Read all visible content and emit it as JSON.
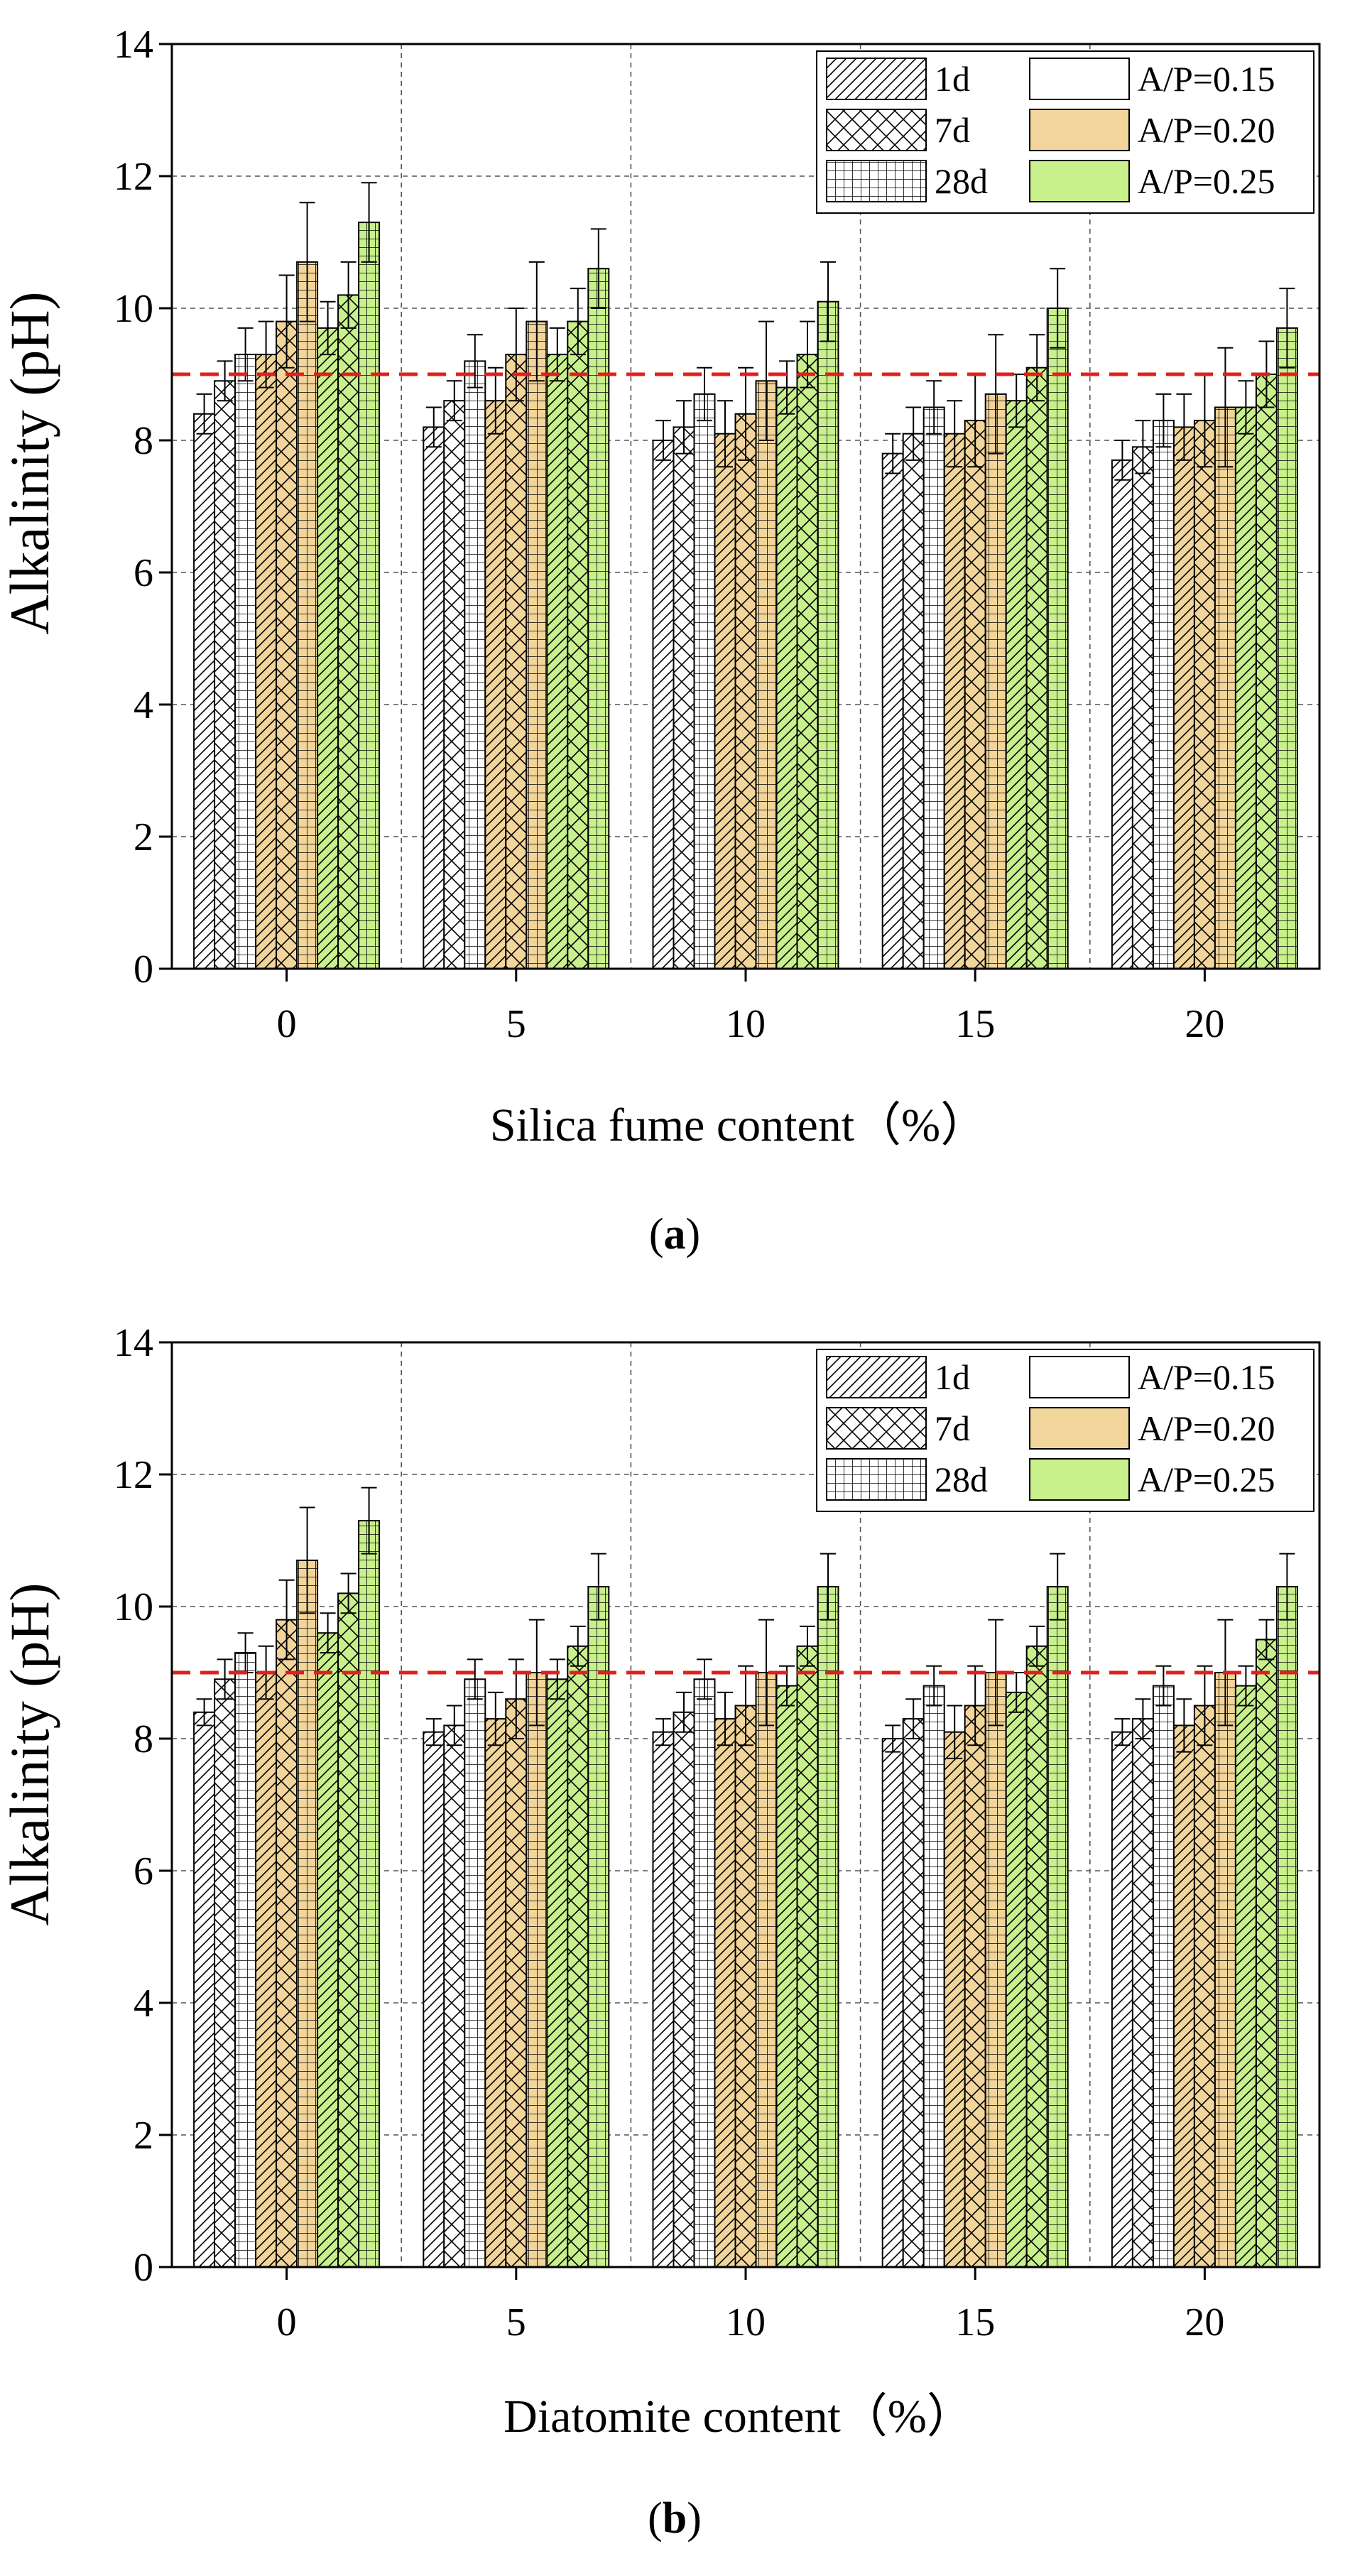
{
  "colors": {
    "ap_015": "#ffffff",
    "ap_020": "#f2d59a",
    "ap_025": "#c8f08c",
    "threshold": "#e0201c",
    "grid": "#555555"
  },
  "chart_data": [
    {
      "type": "bar",
      "panel": "a",
      "caption_open": "(",
      "caption_letter": "a",
      "caption_close": ")",
      "xlabel": "Silica fume content（%）",
      "ylabel": "Alkalinity (pH)",
      "ylim": [
        0,
        14
      ],
      "yticks": [
        "0",
        "2",
        "4",
        "6",
        "8",
        "10",
        "12",
        "14"
      ],
      "categories": [
        "0",
        "5",
        "10",
        "15",
        "20"
      ],
      "threshold": 9,
      "grid": true,
      "legend_position": "top-right",
      "legend": {
        "ages": [
          "1d",
          "7d",
          "28d"
        ],
        "ratios": [
          "A/P=0.15",
          "A/P=0.20",
          "A/P=0.25"
        ]
      },
      "series": [
        {
          "name": "A/P=0.15, 1d",
          "values": [
            8.4,
            8.2,
            8.0,
            7.8,
            7.7
          ],
          "errors": [
            0.3,
            0.3,
            0.3,
            0.3,
            0.3
          ]
        },
        {
          "name": "A/P=0.15, 7d",
          "values": [
            8.9,
            8.6,
            8.2,
            8.1,
            7.9
          ],
          "errors": [
            0.3,
            0.3,
            0.4,
            0.4,
            0.4
          ]
        },
        {
          "name": "A/P=0.15, 28d",
          "values": [
            9.3,
            9.2,
            8.7,
            8.5,
            8.3
          ],
          "errors": [
            0.4,
            0.4,
            0.4,
            0.4,
            0.4
          ]
        },
        {
          "name": "A/P=0.20, 1d",
          "values": [
            9.3,
            8.6,
            8.1,
            8.1,
            8.2
          ],
          "errors": [
            0.5,
            0.5,
            0.5,
            0.5,
            0.5
          ]
        },
        {
          "name": "A/P=0.20, 7d",
          "values": [
            9.8,
            9.3,
            8.4,
            8.3,
            8.3
          ],
          "errors": [
            0.7,
            0.7,
            0.7,
            0.7,
            0.7
          ]
        },
        {
          "name": "A/P=0.20, 28d",
          "values": [
            10.7,
            9.8,
            8.9,
            8.7,
            8.5
          ],
          "errors": [
            0.9,
            0.9,
            0.9,
            0.9,
            0.9
          ]
        },
        {
          "name": "A/P=0.25, 1d",
          "values": [
            9.7,
            9.3,
            8.8,
            8.6,
            8.5
          ],
          "errors": [
            0.4,
            0.4,
            0.4,
            0.4,
            0.4
          ]
        },
        {
          "name": "A/P=0.25, 7d",
          "values": [
            10.2,
            9.8,
            9.3,
            9.1,
            9.0
          ],
          "errors": [
            0.5,
            0.5,
            0.5,
            0.5,
            0.5
          ]
        },
        {
          "name": "A/P=0.25, 28d",
          "values": [
            11.3,
            10.6,
            10.1,
            10.0,
            9.7
          ],
          "errors": [
            0.6,
            0.6,
            0.6,
            0.6,
            0.6
          ]
        }
      ]
    },
    {
      "type": "bar",
      "panel": "b",
      "caption_open": "(",
      "caption_letter": "b",
      "caption_close": ")",
      "xlabel": "Diatomite content（%）",
      "ylabel": "Alkalinity (pH)",
      "ylim": [
        0,
        14
      ],
      "yticks": [
        "0",
        "2",
        "4",
        "6",
        "8",
        "10",
        "12",
        "14"
      ],
      "categories": [
        "0",
        "5",
        "10",
        "15",
        "20"
      ],
      "threshold": 9,
      "grid": true,
      "legend_position": "top-right",
      "legend": {
        "ages": [
          "1d",
          "7d",
          "28d"
        ],
        "ratios": [
          "A/P=0.15",
          "A/P=0.20",
          "A/P=0.25"
        ]
      },
      "series": [
        {
          "name": "A/P=0.15, 1d",
          "values": [
            8.4,
            8.1,
            8.1,
            8.0,
            8.1
          ],
          "errors": [
            0.2,
            0.2,
            0.2,
            0.2,
            0.2
          ]
        },
        {
          "name": "A/P=0.15, 7d",
          "values": [
            8.9,
            8.2,
            8.4,
            8.3,
            8.3
          ],
          "errors": [
            0.3,
            0.3,
            0.3,
            0.3,
            0.3
          ]
        },
        {
          "name": "A/P=0.15, 28d",
          "values": [
            9.3,
            8.9,
            8.9,
            8.8,
            8.8
          ],
          "errors": [
            0.3,
            0.3,
            0.3,
            0.3,
            0.3
          ]
        },
        {
          "name": "A/P=0.20, 1d",
          "values": [
            9.0,
            8.3,
            8.3,
            8.1,
            8.2
          ],
          "errors": [
            0.4,
            0.4,
            0.4,
            0.4,
            0.4
          ]
        },
        {
          "name": "A/P=0.20, 7d",
          "values": [
            9.8,
            8.6,
            8.5,
            8.5,
            8.5
          ],
          "errors": [
            0.6,
            0.6,
            0.6,
            0.6,
            0.6
          ]
        },
        {
          "name": "A/P=0.20, 28d",
          "values": [
            10.7,
            9.0,
            9.0,
            9.0,
            9.0
          ],
          "errors": [
            0.8,
            0.8,
            0.8,
            0.8,
            0.8
          ]
        },
        {
          "name": "A/P=0.25, 1d",
          "values": [
            9.6,
            8.9,
            8.8,
            8.7,
            8.8
          ],
          "errors": [
            0.3,
            0.3,
            0.3,
            0.3,
            0.3
          ]
        },
        {
          "name": "A/P=0.25, 7d",
          "values": [
            10.2,
            9.4,
            9.4,
            9.4,
            9.5
          ],
          "errors": [
            0.3,
            0.3,
            0.3,
            0.3,
            0.3
          ]
        },
        {
          "name": "A/P=0.25, 28d",
          "values": [
            11.3,
            10.3,
            10.3,
            10.3,
            10.3
          ],
          "errors": [
            0.5,
            0.5,
            0.5,
            0.5,
            0.5
          ]
        }
      ]
    }
  ]
}
